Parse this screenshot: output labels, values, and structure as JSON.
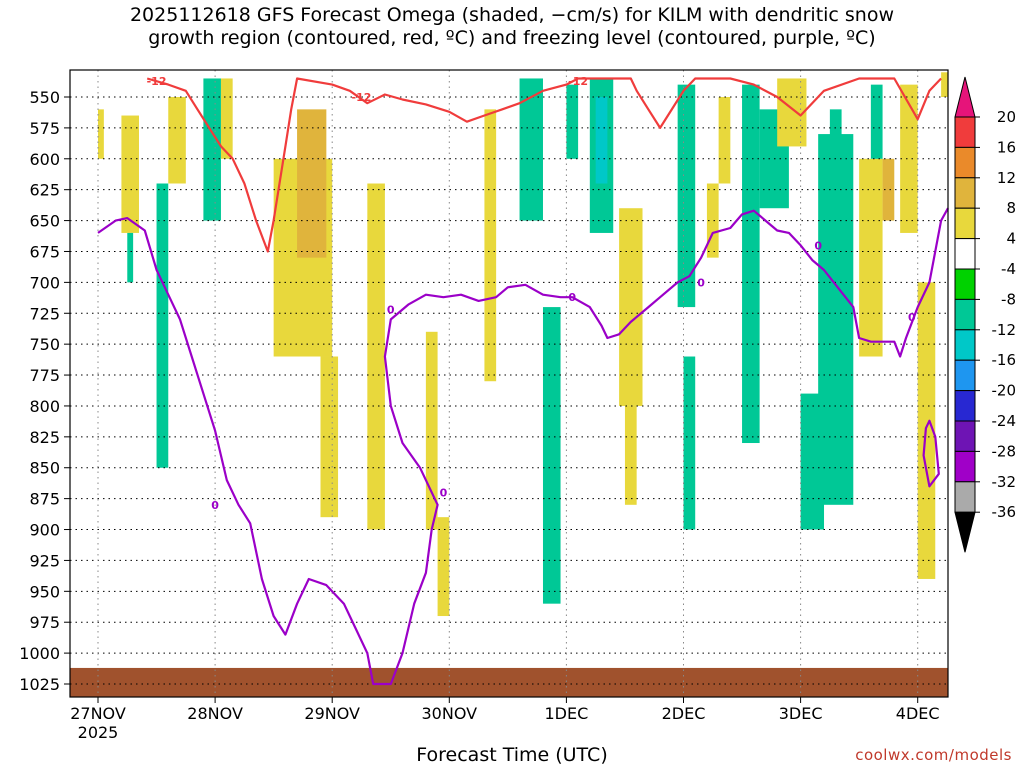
{
  "chart_data": {
    "type": "heatmap",
    "title": "2025112618 GFS Forecast Omega (shaded, −cm/s) for KILM with dendritic snow\ngrowth region (contoured, red, ºC) and freezing level (contoured, purple, ºC)",
    "xlabel": "Forecast Time (UTC)",
    "ylabel": "",
    "credit": "coolwx.com/models",
    "x_ticks": [
      "27NOV",
      "28NOV",
      "29NOV",
      "30NOV",
      "1DEC",
      "2DEC",
      "3DEC",
      "4DEC"
    ],
    "x_year": "2025",
    "xlim": [
      0,
      7.3
    ],
    "y_ticks": [
      550,
      575,
      600,
      625,
      650,
      675,
      700,
      725,
      750,
      775,
      800,
      825,
      850,
      875,
      900,
      925,
      950,
      975,
      1000,
      1025
    ],
    "ylim": [
      1040,
      530
    ],
    "grid": true,
    "colorbar": {
      "ticks": [
        20,
        16,
        12,
        8,
        4,
        -4,
        -8,
        -12,
        -16,
        -20,
        -24,
        -28,
        -32,
        -36
      ],
      "levels": [
        {
          "range": [
            16,
            20
          ],
          "color": "#f03c3c"
        },
        {
          "range": [
            12,
            16
          ],
          "color": "#ea8a2a"
        },
        {
          "range": [
            8,
            12
          ],
          "color": "#e0b43c"
        },
        {
          "range": [
            4,
            8
          ],
          "color": "#e8d83c"
        },
        {
          "range": [
            -4,
            4
          ],
          "color": "#ffffff"
        },
        {
          "range": [
            -8,
            -4
          ],
          "color": "#00d200"
        },
        {
          "range": [
            -12,
            -8
          ],
          "color": "#00c896"
        },
        {
          "range": [
            -16,
            -12
          ],
          "color": "#00c8c8"
        },
        {
          "range": [
            -20,
            -16
          ],
          "color": "#1e96f0"
        },
        {
          "range": [
            -24,
            -20
          ],
          "color": "#2828d2"
        },
        {
          "range": [
            -28,
            -24
          ],
          "color": "#6e14b4"
        },
        {
          "range": [
            -32,
            -28
          ],
          "color": "#a000c8"
        },
        {
          "range": [
            -36,
            -32
          ],
          "color": "#aaaaaa"
        }
      ],
      "top_arrow_color": "#e6147a",
      "bottom_arrow_color": "#000000"
    },
    "shading": [
      {
        "x": [
          0.0,
          0.05
        ],
        "p": [
          560,
          600
        ],
        "level": 4
      },
      {
        "x": [
          0.2,
          0.35
        ],
        "p": [
          565,
          660
        ],
        "level": 4
      },
      {
        "x": [
          0.25,
          0.3
        ],
        "p": [
          660,
          700
        ],
        "level": -8
      },
      {
        "x": [
          0.5,
          0.6
        ],
        "p": [
          620,
          850
        ],
        "level": -8
      },
      {
        "x": [
          0.6,
          0.75
        ],
        "p": [
          550,
          620
        ],
        "level": 4
      },
      {
        "x": [
          0.9,
          1.05
        ],
        "p": [
          535,
          650
        ],
        "level": -8
      },
      {
        "x": [
          1.05,
          1.15
        ],
        "p": [
          535,
          600
        ],
        "level": 4
      },
      {
        "x": [
          1.5,
          2.0
        ],
        "p": [
          600,
          760
        ],
        "level": 4
      },
      {
        "x": [
          1.7,
          1.95
        ],
        "p": [
          560,
          680
        ],
        "level": 8
      },
      {
        "x": [
          1.9,
          2.05
        ],
        "p": [
          760,
          890
        ],
        "level": 4
      },
      {
        "x": [
          2.3,
          2.45
        ],
        "p": [
          620,
          900
        ],
        "level": 4
      },
      {
        "x": [
          2.8,
          2.9
        ],
        "p": [
          740,
          900
        ],
        "level": 4
      },
      {
        "x": [
          2.9,
          3.0
        ],
        "p": [
          890,
          970
        ],
        "level": 4
      },
      {
        "x": [
          3.3,
          3.4
        ],
        "p": [
          560,
          780
        ],
        "level": 4
      },
      {
        "x": [
          3.6,
          3.8
        ],
        "p": [
          535,
          650
        ],
        "level": -8
      },
      {
        "x": [
          3.8,
          3.95
        ],
        "p": [
          720,
          960
        ],
        "level": -8
      },
      {
        "x": [
          4.0,
          4.1
        ],
        "p": [
          540,
          600
        ],
        "level": -8
      },
      {
        "x": [
          4.2,
          4.4
        ],
        "p": [
          535,
          660
        ],
        "level": -8
      },
      {
        "x": [
          4.25,
          4.35
        ],
        "p": [
          550,
          620
        ],
        "level": -12
      },
      {
        "x": [
          4.45,
          4.65
        ],
        "p": [
          640,
          800
        ],
        "level": 4
      },
      {
        "x": [
          4.5,
          4.6
        ],
        "p": [
          800,
          880
        ],
        "level": 4
      },
      {
        "x": [
          4.95,
          5.1
        ],
        "p": [
          540,
          720
        ],
        "level": -8
      },
      {
        "x": [
          5.0,
          5.1
        ],
        "p": [
          760,
          900
        ],
        "level": -8
      },
      {
        "x": [
          5.2,
          5.3
        ],
        "p": [
          620,
          680
        ],
        "level": 4
      },
      {
        "x": [
          5.3,
          5.4
        ],
        "p": [
          550,
          620
        ],
        "level": 4
      },
      {
        "x": [
          5.5,
          5.65
        ],
        "p": [
          540,
          830
        ],
        "level": -8
      },
      {
        "x": [
          5.65,
          5.9
        ],
        "p": [
          560,
          640
        ],
        "level": -8
      },
      {
        "x": [
          5.8,
          6.05
        ],
        "p": [
          535,
          590
        ],
        "level": 4
      },
      {
        "x": [
          6.25,
          6.35
        ],
        "p": [
          560,
          640
        ],
        "level": -8
      },
      {
        "x": [
          6.15,
          6.45
        ],
        "p": [
          580,
          880
        ],
        "level": -8
      },
      {
        "x": [
          6.0,
          6.2
        ],
        "p": [
          790,
          900
        ],
        "level": -8
      },
      {
        "x": [
          6.5,
          6.7
        ],
        "p": [
          600,
          760
        ],
        "level": 4
      },
      {
        "x": [
          6.6,
          6.7
        ],
        "p": [
          540,
          600
        ],
        "level": -8
      },
      {
        "x": [
          6.7,
          6.8
        ],
        "p": [
          600,
          650
        ],
        "level": 8
      },
      {
        "x": [
          6.85,
          7.0
        ],
        "p": [
          540,
          660
        ],
        "level": 4
      },
      {
        "x": [
          7.0,
          7.15
        ],
        "p": [
          700,
          940
        ],
        "level": 4
      },
      {
        "x": [
          7.2,
          7.35
        ],
        "p": [
          530,
          550
        ],
        "level": 4
      }
    ],
    "dgz_contour_minus12": {
      "label": "-12",
      "points": [
        [
          0.42,
          535
        ],
        [
          0.6,
          540
        ],
        [
          0.75,
          545
        ],
        [
          0.85,
          560
        ],
        [
          0.95,
          575
        ],
        [
          1.05,
          590
        ],
        [
          1.15,
          600
        ],
        [
          1.25,
          620
        ],
        [
          1.35,
          650
        ],
        [
          1.45,
          675
        ],
        [
          1.5,
          650
        ],
        [
          1.55,
          620
        ],
        [
          1.6,
          590
        ],
        [
          1.65,
          560
        ],
        [
          1.7,
          535
        ],
        [
          2.0,
          540
        ],
        [
          2.15,
          545
        ],
        [
          2.3,
          555
        ],
        [
          2.45,
          548
        ],
        [
          2.6,
          552
        ],
        [
          2.8,
          556
        ],
        [
          3.0,
          562
        ],
        [
          3.15,
          570
        ],
        [
          3.3,
          565
        ],
        [
          3.45,
          560
        ],
        [
          3.6,
          555
        ],
        [
          3.8,
          545
        ],
        [
          4.0,
          540
        ],
        [
          4.1,
          535
        ],
        [
          4.55,
          535
        ],
        [
          4.6,
          545
        ],
        [
          4.7,
          560
        ],
        [
          4.8,
          575
        ],
        [
          4.9,
          560
        ],
        [
          5.0,
          545
        ],
        [
          5.1,
          535
        ],
        [
          5.4,
          535
        ],
        [
          5.6,
          540
        ],
        [
          5.8,
          550
        ],
        [
          6.0,
          565
        ],
        [
          6.2,
          545
        ],
        [
          6.5,
          535
        ],
        [
          6.8,
          535
        ],
        [
          7.0,
          568
        ],
        [
          7.1,
          545
        ],
        [
          7.2,
          535
        ]
      ]
    },
    "freezing_contour_0": {
      "label": "0",
      "points": [
        [
          0.0,
          660
        ],
        [
          0.15,
          650
        ],
        [
          0.25,
          648
        ],
        [
          0.4,
          658
        ],
        [
          0.5,
          690
        ],
        [
          0.6,
          710
        ],
        [
          0.7,
          730
        ],
        [
          0.8,
          760
        ],
        [
          0.9,
          790
        ],
        [
          1.0,
          820
        ],
        [
          1.1,
          860
        ],
        [
          1.2,
          880
        ],
        [
          1.3,
          895
        ],
        [
          1.4,
          940
        ],
        [
          1.5,
          970
        ],
        [
          1.6,
          985
        ],
        [
          1.7,
          960
        ],
        [
          1.8,
          940
        ],
        [
          1.95,
          945
        ],
        [
          2.1,
          960
        ],
        [
          2.2,
          980
        ],
        [
          2.3,
          1000
        ],
        [
          2.35,
          1025
        ],
        [
          2.5,
          1025
        ],
        [
          2.6,
          1000
        ],
        [
          2.7,
          960
        ],
        [
          2.8,
          935
        ],
        [
          2.85,
          900
        ],
        [
          2.9,
          880
        ],
        [
          2.75,
          850
        ],
        [
          2.6,
          830
        ],
        [
          2.5,
          800
        ],
        [
          2.45,
          760
        ],
        [
          2.5,
          730
        ],
        [
          2.65,
          718
        ],
        [
          2.8,
          710
        ],
        [
          2.95,
          712
        ],
        [
          3.1,
          710
        ],
        [
          3.25,
          715
        ],
        [
          3.4,
          712
        ],
        [
          3.5,
          704
        ],
        [
          3.65,
          702
        ],
        [
          3.8,
          710
        ],
        [
          3.95,
          712
        ],
        [
          4.05,
          712
        ],
        [
          4.2,
          720
        ],
        [
          4.3,
          735
        ],
        [
          4.35,
          745
        ],
        [
          4.45,
          742
        ],
        [
          4.55,
          732
        ],
        [
          4.7,
          720
        ],
        [
          4.8,
          712
        ],
        [
          4.95,
          700
        ],
        [
          5.05,
          695
        ],
        [
          5.15,
          680
        ],
        [
          5.25,
          660
        ],
        [
          5.4,
          656
        ],
        [
          5.5,
          645
        ],
        [
          5.6,
          642
        ],
        [
          5.7,
          650
        ],
        [
          5.8,
          658
        ],
        [
          5.9,
          660
        ],
        [
          6.0,
          670
        ],
        [
          6.1,
          682
        ],
        [
          6.2,
          690
        ],
        [
          6.3,
          702
        ],
        [
          6.45,
          720
        ],
        [
          6.5,
          745
        ],
        [
          6.6,
          748
        ],
        [
          6.7,
          748
        ],
        [
          6.8,
          748
        ],
        [
          6.85,
          760
        ],
        [
          6.9,
          745
        ],
        [
          7.0,
          720
        ],
        [
          7.1,
          700
        ],
        [
          7.2,
          650
        ],
        [
          7.3,
          640
        ]
      ]
    },
    "freezing_contour_0_closed": {
      "points": [
        [
          7.1,
          812
        ],
        [
          7.15,
          825
        ],
        [
          7.18,
          855
        ],
        [
          7.1,
          865
        ],
        [
          7.05,
          840
        ],
        [
          7.07,
          818
        ]
      ]
    },
    "terrain": {
      "color": "#a0522d",
      "surface_p": [
        1012,
        1025
      ]
    }
  }
}
